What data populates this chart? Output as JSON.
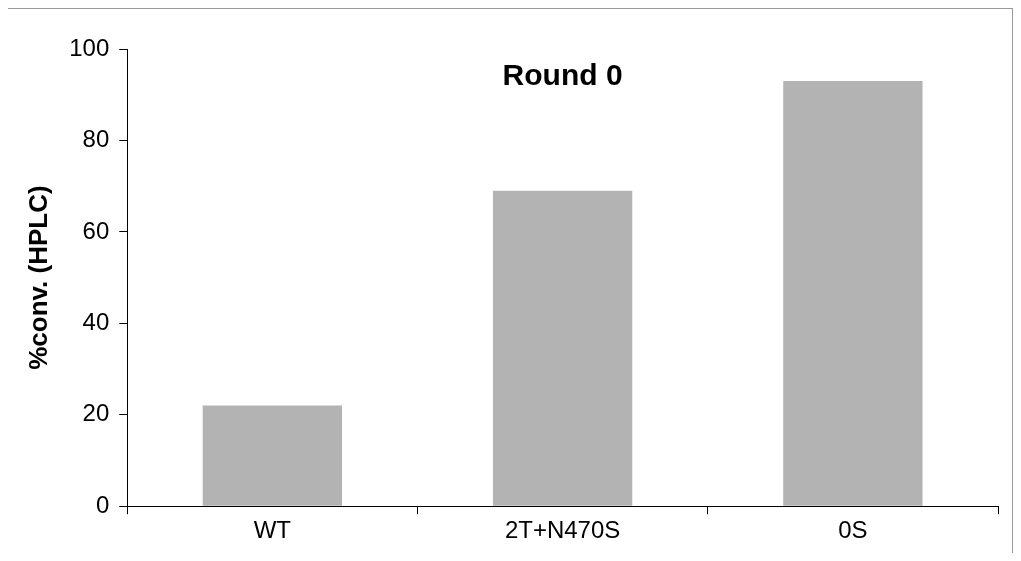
{
  "chart_data": {
    "type": "bar",
    "title": "Round 0",
    "ylabel": "%conv. (HPLC)",
    "categories": [
      "WT",
      "2T+N470S",
      "0S"
    ],
    "values": [
      22,
      69,
      93
    ],
    "color": "#b3b3b3",
    "ylim": [
      0,
      100
    ],
    "yticks": [
      0,
      20,
      40,
      60,
      80,
      100
    ],
    "grid": false
  }
}
